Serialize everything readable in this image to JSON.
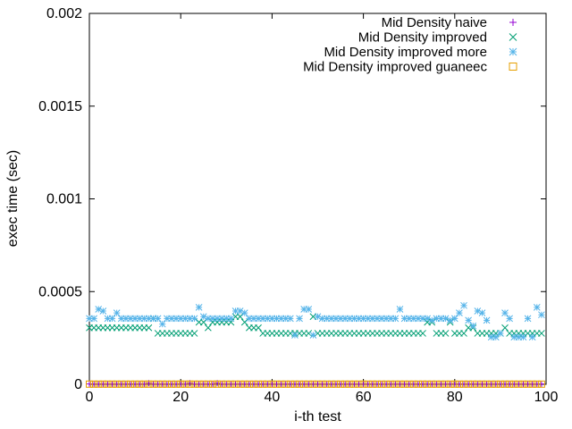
{
  "chart_data": {
    "type": "scatter",
    "title": "",
    "xlabel": "i-th test",
    "ylabel": "exec time (sec)",
    "xlim": [
      0,
      100
    ],
    "ylim": [
      0,
      0.002
    ],
    "xticks": [
      0,
      20,
      40,
      60,
      80,
      100
    ],
    "xtick_labels": [
      "0",
      "20",
      "40",
      "60",
      "80",
      "100"
    ],
    "yticks": [
      0,
      0.0005,
      0.001,
      0.0015,
      0.002
    ],
    "ytick_labels": [
      "0",
      "0.0005",
      "0.001",
      "0.0015",
      "0.002"
    ],
    "grid": false,
    "legend_position": "top-right",
    "series": [
      {
        "name": "Mid Density naive",
        "marker": "plus",
        "color": "#9400d3",
        "x": [
          0,
          1,
          2,
          3,
          4,
          5,
          6,
          7,
          8,
          9,
          10,
          11,
          12,
          13,
          14,
          15,
          16,
          17,
          18,
          19,
          20,
          21,
          22,
          23,
          24,
          25,
          26,
          27,
          28,
          29,
          30,
          31,
          32,
          33,
          34,
          35,
          36,
          37,
          38,
          39,
          40,
          41,
          42,
          43,
          44,
          45,
          46,
          47,
          48,
          49,
          50,
          51,
          52,
          53,
          54,
          55,
          56,
          57,
          58,
          59,
          60,
          61,
          62,
          63,
          64,
          65,
          66,
          67,
          68,
          69,
          70,
          71,
          72,
          73,
          74,
          75,
          76,
          77,
          78,
          79,
          80,
          81,
          82,
          83,
          84,
          85,
          86,
          87,
          88,
          89,
          90,
          91,
          92,
          93,
          94,
          95,
          96,
          97,
          98,
          99
        ],
        "y": [
          2e-06,
          2e-06,
          2e-06,
          2e-06,
          2e-06,
          2e-06,
          2e-06,
          2e-06,
          2e-06,
          2e-06,
          2e-06,
          2e-06,
          2e-06,
          6e-06,
          2e-06,
          2e-06,
          2e-06,
          2e-06,
          2e-06,
          2e-06,
          2e-06,
          2e-06,
          6e-06,
          2e-06,
          2e-06,
          2e-06,
          2e-06,
          2e-06,
          6e-06,
          2e-06,
          2e-06,
          2e-06,
          2e-06,
          2e-06,
          2e-06,
          2e-06,
          2e-06,
          2e-06,
          2e-06,
          2e-06,
          2e-06,
          2e-06,
          2e-06,
          2e-06,
          2e-06,
          2e-06,
          2e-06,
          2e-06,
          2e-06,
          2e-06,
          2e-06,
          2e-06,
          2e-06,
          2e-06,
          2e-06,
          2e-06,
          2e-06,
          2e-06,
          2e-06,
          2e-06,
          2e-06,
          2e-06,
          2e-06,
          2e-06,
          2e-06,
          2e-06,
          2e-06,
          2e-06,
          2e-06,
          2e-06,
          2e-06,
          2e-06,
          2e-06,
          2e-06,
          2e-06,
          2e-06,
          2e-06,
          2e-06,
          2e-06,
          2e-06,
          2e-06,
          2e-06,
          2e-06,
          2e-06,
          2e-06,
          2e-06,
          2e-06,
          2e-06,
          2e-06,
          2e-06,
          2e-06,
          2e-06,
          2e-06,
          2e-06,
          2e-06,
          2e-06,
          2e-06,
          2e-06,
          2e-06,
          2e-06
        ]
      },
      {
        "name": "Mid Density improved",
        "marker": "cross",
        "color": "#009e73",
        "x": [
          0,
          1,
          2,
          3,
          4,
          5,
          6,
          7,
          8,
          9,
          10,
          11,
          12,
          13,
          14,
          15,
          16,
          17,
          18,
          19,
          20,
          21,
          22,
          23,
          24,
          25,
          26,
          27,
          28,
          29,
          30,
          31,
          32,
          33,
          34,
          35,
          36,
          37,
          38,
          39,
          40,
          41,
          42,
          43,
          44,
          45,
          46,
          47,
          48,
          49,
          50,
          51,
          52,
          53,
          54,
          55,
          56,
          57,
          58,
          59,
          60,
          61,
          62,
          63,
          64,
          65,
          66,
          67,
          68,
          69,
          70,
          71,
          72,
          73,
          74,
          75,
          76,
          77,
          78,
          79,
          80,
          81,
          82,
          83,
          84,
          85,
          86,
          87,
          88,
          89,
          90,
          91,
          92,
          93,
          94,
          95,
          96,
          97,
          98,
          99
        ],
        "y": [
          0.000305,
          0.000305,
          0.000305,
          0.000305,
          0.000305,
          0.000305,
          0.000305,
          0.000305,
          0.000305,
          0.000305,
          0.000305,
          0.000305,
          0.000305,
          0.000305,
          0.000355,
          0.000275,
          0.000275,
          0.000275,
          0.000275,
          0.000275,
          0.000275,
          0.000275,
          0.000275,
          0.000275,
          0.000335,
          0.000335,
          0.000305,
          0.000335,
          0.000335,
          0.000335,
          0.000335,
          0.000335,
          0.000365,
          0.000365,
          0.000335,
          0.000305,
          0.000305,
          0.000305,
          0.000275,
          0.000275,
          0.000275,
          0.000275,
          0.000275,
          0.000275,
          0.000275,
          0.000275,
          0.000275,
          0.000275,
          0.000275,
          0.000365,
          0.000275,
          0.000275,
          0.000275,
          0.000275,
          0.000275,
          0.000275,
          0.000275,
          0.000275,
          0.000275,
          0.000275,
          0.000275,
          0.000275,
          0.000275,
          0.000275,
          0.000275,
          0.000275,
          0.000275,
          0.000275,
          0.000275,
          0.000275,
          0.000275,
          0.000275,
          0.000275,
          0.000275,
          0.000335,
          0.000335,
          0.000275,
          0.000275,
          0.000275,
          0.000335,
          0.000275,
          0.000275,
          0.000275,
          0.000305,
          0.000305,
          0.000275,
          0.000275,
          0.000275,
          0.000275,
          0.000275,
          0.000275,
          0.000305,
          0.000275,
          0.000275,
          0.000275,
          0.000275,
          0.000275,
          0.000275,
          0.000275,
          0.000275
        ]
      },
      {
        "name": "Mid Density improved more",
        "marker": "star",
        "color": "#56b4e9",
        "x": [
          0,
          1,
          2,
          3,
          4,
          5,
          6,
          7,
          8,
          9,
          10,
          11,
          12,
          13,
          14,
          15,
          16,
          17,
          18,
          19,
          20,
          21,
          22,
          23,
          24,
          25,
          26,
          27,
          28,
          29,
          30,
          31,
          32,
          33,
          34,
          35,
          36,
          37,
          38,
          39,
          40,
          41,
          42,
          43,
          44,
          45,
          46,
          47,
          48,
          49,
          50,
          51,
          52,
          53,
          54,
          55,
          56,
          57,
          58,
          59,
          60,
          61,
          62,
          63,
          64,
          65,
          66,
          67,
          68,
          69,
          70,
          71,
          72,
          73,
          74,
          75,
          76,
          77,
          78,
          79,
          80,
          81,
          82,
          83,
          84,
          85,
          86,
          87,
          88,
          89,
          90,
          91,
          92,
          93,
          94,
          95,
          96,
          97,
          98,
          99
        ],
        "y": [
          0.000355,
          0.000355,
          0.000405,
          0.000395,
          0.000355,
          0.000355,
          0.000385,
          0.000355,
          0.000355,
          0.000355,
          0.000355,
          0.000355,
          0.000355,
          0.000355,
          0.000355,
          0.000355,
          0.000325,
          0.000355,
          0.000355,
          0.000355,
          0.000355,
          0.000355,
          0.000355,
          0.000355,
          0.000415,
          0.000365,
          0.000355,
          0.000355,
          0.000355,
          0.000355,
          0.000355,
          0.000355,
          0.000395,
          0.000395,
          0.000385,
          0.000355,
          0.000355,
          0.000355,
          0.000355,
          0.000355,
          0.000355,
          0.000355,
          0.000355,
          0.000355,
          0.000355,
          0.000265,
          0.000355,
          0.000405,
          0.000405,
          0.000265,
          0.000365,
          0.000355,
          0.000355,
          0.000355,
          0.000355,
          0.000355,
          0.000355,
          0.000355,
          0.000355,
          0.000355,
          0.000355,
          0.000355,
          0.000355,
          0.000355,
          0.000355,
          0.000355,
          0.000355,
          0.000355,
          0.000405,
          0.000355,
          0.000355,
          0.000355,
          0.000355,
          0.000355,
          0.000355,
          0.000345,
          0.000355,
          0.000355,
          0.000355,
          0.000345,
          0.000355,
          0.000385,
          0.000425,
          0.000345,
          0.000315,
          0.000395,
          0.000385,
          0.000345,
          0.000255,
          0.000255,
          0.000275,
          0.000385,
          0.000355,
          0.000255,
          0.000255,
          0.000255,
          0.000355,
          0.000255,
          0.000415,
          0.000375
        ]
      },
      {
        "name": "Mid Density improved guaneec",
        "marker": "square",
        "color": "#e69f00",
        "x": [
          0,
          1,
          2,
          3,
          4,
          5,
          6,
          7,
          8,
          9,
          10,
          11,
          12,
          13,
          14,
          15,
          16,
          17,
          18,
          19,
          20,
          21,
          22,
          23,
          24,
          25,
          26,
          27,
          28,
          29,
          30,
          31,
          32,
          33,
          34,
          35,
          36,
          37,
          38,
          39,
          40,
          41,
          42,
          43,
          44,
          45,
          46,
          47,
          48,
          49,
          50,
          51,
          52,
          53,
          54,
          55,
          56,
          57,
          58,
          59,
          60,
          61,
          62,
          63,
          64,
          65,
          66,
          67,
          68,
          69,
          70,
          71,
          72,
          73,
          74,
          75,
          76,
          77,
          78,
          79,
          80,
          81,
          82,
          83,
          84,
          85,
          86,
          87,
          88,
          89,
          90,
          91,
          92,
          93,
          94,
          95,
          96,
          97,
          98,
          99
        ],
        "y": [
          1e-06,
          1e-06,
          1e-06,
          1e-06,
          1e-06,
          1e-06,
          1e-06,
          1e-06,
          1e-06,
          1e-06,
          1e-06,
          1e-06,
          1e-06,
          1e-06,
          1e-06,
          1e-06,
          1e-06,
          1e-06,
          1e-06,
          1e-06,
          1e-06,
          1e-06,
          1e-06,
          1e-06,
          1e-06,
          1e-06,
          1e-06,
          1e-06,
          1e-06,
          1e-06,
          1e-06,
          1e-06,
          1e-06,
          1e-06,
          1e-06,
          1e-06,
          1e-06,
          1e-06,
          1e-06,
          1e-06,
          1e-06,
          1e-06,
          1e-06,
          1e-06,
          1e-06,
          1e-06,
          1e-06,
          1e-06,
          1e-06,
          1e-06,
          1e-06,
          1e-06,
          1e-06,
          1e-06,
          1e-06,
          1e-06,
          1e-06,
          1e-06,
          1e-06,
          1e-06,
          1e-06,
          1e-06,
          1e-06,
          1e-06,
          1e-06,
          1e-06,
          1e-06,
          1e-06,
          1e-06,
          1e-06,
          1e-06,
          1e-06,
          1e-06,
          1e-06,
          1e-06,
          1e-06,
          1e-06,
          1e-06,
          1e-06,
          1e-06,
          1e-06,
          1e-06,
          1e-06,
          1e-06,
          1e-06,
          1e-06,
          1e-06,
          1e-06,
          1e-06,
          1e-06,
          1e-06,
          1e-06,
          1e-06,
          1e-06,
          1e-06,
          1e-06,
          1e-06,
          1e-06,
          1e-06,
          1e-06
        ]
      }
    ]
  }
}
